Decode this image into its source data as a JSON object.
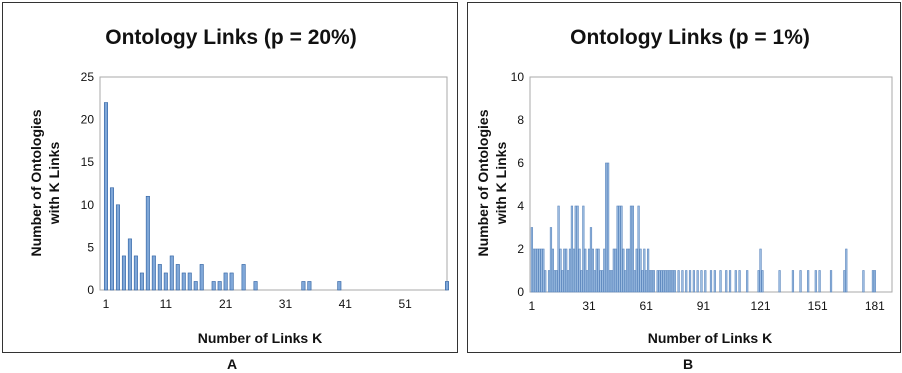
{
  "figure_labels": [
    "A",
    "B"
  ],
  "chart_data": [
    {
      "type": "bar",
      "title": "Ontology Links (p = 20%)",
      "xlabel": "Number of Links K",
      "ylabel_line1": "Number of Ontologies",
      "ylabel_line2": "with K Links",
      "xlim": [
        0,
        58
      ],
      "ylim": [
        0,
        25
      ],
      "yticks": [
        0,
        5,
        10,
        15,
        20,
        25
      ],
      "xticks": [
        1,
        11,
        21,
        31,
        41,
        51
      ],
      "bar_color": "#7fa7d8",
      "bar_edge": "#2d5fa0",
      "series": [
        {
          "x": [
            1,
            2,
            3,
            4,
            5,
            6,
            7,
            8,
            9,
            10,
            11,
            12,
            13,
            14,
            15,
            16,
            17,
            19,
            20,
            21,
            22,
            24,
            26,
            34,
            35,
            40,
            58
          ],
          "values": [
            22,
            12,
            10,
            4,
            6,
            4,
            2,
            11,
            4,
            3,
            2,
            4,
            3,
            2,
            2,
            1,
            3,
            1,
            1,
            2,
            2,
            3,
            1,
            1,
            1,
            1,
            1
          ]
        }
      ]
    },
    {
      "type": "bar",
      "title": "Ontology Links (p = 1%)",
      "xlabel": "Number of Links K",
      "ylabel_line1": "Number of Ontologies",
      "ylabel_line2": "with K Links",
      "xlim": [
        0,
        190
      ],
      "ylim": [
        0,
        10
      ],
      "yticks": [
        0,
        2,
        4,
        6,
        8,
        10
      ],
      "xticks": [
        1,
        31,
        61,
        91,
        121,
        151,
        181
      ],
      "bar_color": "#9fbfe3",
      "bar_edge": "#5b86bd",
      "series": [
        {
          "x": [
            1,
            2,
            3,
            4,
            5,
            6,
            7,
            8,
            10,
            11,
            12,
            13,
            14,
            15,
            16,
            17,
            18,
            19,
            20,
            21,
            22,
            23,
            24,
            25,
            26,
            27,
            28,
            29,
            30,
            31,
            32,
            33,
            34,
            35,
            36,
            37,
            38,
            39,
            40,
            41,
            42,
            43,
            44,
            45,
            46,
            47,
            48,
            49,
            50,
            51,
            52,
            53,
            54,
            55,
            56,
            57,
            58,
            59,
            60,
            61,
            62,
            63,
            64,
            65,
            67,
            68,
            69,
            70,
            71,
            72,
            73,
            74,
            75,
            76,
            78,
            80,
            82,
            84,
            86,
            88,
            90,
            92,
            95,
            97,
            100,
            103,
            105,
            108,
            110,
            114,
            120,
            121,
            122,
            131,
            138,
            142,
            146,
            150,
            152,
            158,
            165,
            166,
            175,
            180,
            181
          ],
          "values": [
            3,
            2,
            2,
            2,
            2,
            2,
            2,
            1,
            1,
            3,
            2,
            1,
            1,
            4,
            2,
            1,
            2,
            2,
            1,
            2,
            4,
            2,
            4,
            4,
            2,
            1,
            4,
            2,
            1,
            2,
            3,
            2,
            1,
            2,
            2,
            1,
            1,
            2,
            6,
            6,
            1,
            1,
            2,
            2,
            4,
            4,
            4,
            2,
            1,
            2,
            2,
            4,
            4,
            1,
            2,
            4,
            2,
            1,
            2,
            1,
            2,
            1,
            1,
            1,
            1,
            1,
            1,
            1,
            1,
            1,
            1,
            1,
            1,
            1,
            1,
            1,
            1,
            1,
            1,
            1,
            1,
            1,
            1,
            1,
            1,
            1,
            1,
            1,
            1,
            1,
            1,
            2,
            1,
            1,
            1,
            1,
            1,
            1,
            1,
            1,
            1,
            2,
            1,
            1,
            1
          ]
        }
      ]
    }
  ]
}
